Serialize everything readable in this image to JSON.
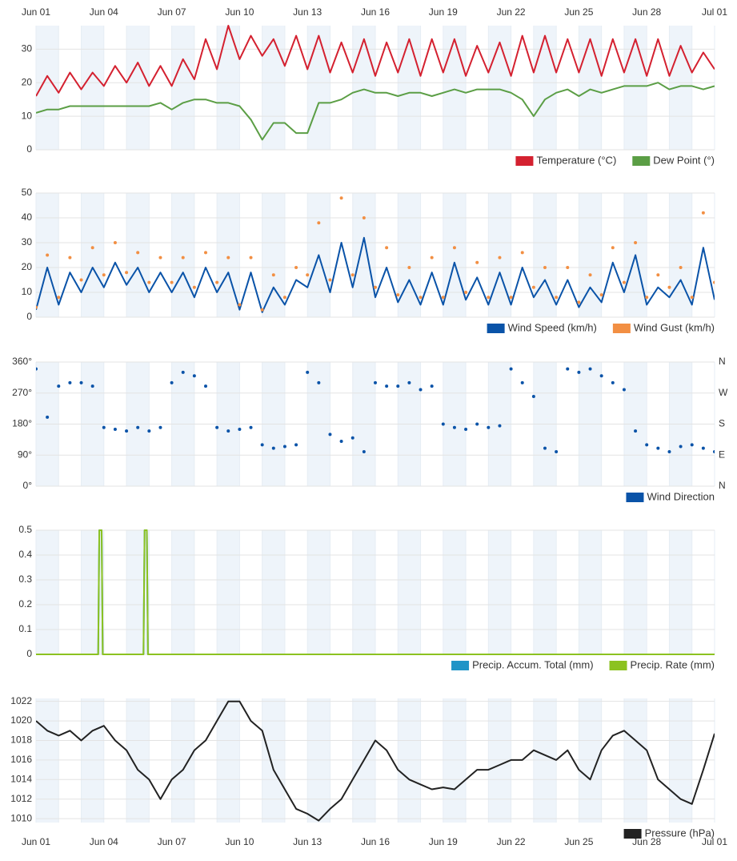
{
  "chart_data": [
    {
      "type": "line",
      "x": [
        0,
        0.5,
        1,
        1.5,
        2,
        2.5,
        3,
        3.5,
        4,
        4.5,
        5,
        5.5,
        6,
        6.5,
        7,
        7.5,
        8,
        8.5,
        9,
        9.5,
        10,
        10.5,
        11,
        11.5,
        12,
        12.5,
        13,
        13.5,
        14,
        14.5,
        15,
        15.5,
        16,
        16.5,
        17,
        17.5,
        18,
        18.5,
        19,
        19.5,
        20,
        20.5,
        21,
        21.5,
        22,
        22.5,
        23,
        23.5,
        24,
        24.5,
        25,
        25.5,
        26,
        26.5,
        27,
        27.5,
        28,
        28.5,
        29,
        29.5,
        30
      ],
      "xlim": [
        0,
        30
      ],
      "xticks": [
        {
          "value": 0,
          "label": "Jun 01"
        },
        {
          "value": 3,
          "label": "Jun 04"
        },
        {
          "value": 6,
          "label": "Jun 07"
        },
        {
          "value": 9,
          "label": "Jun 10"
        },
        {
          "value": 12,
          "label": "Jun 13"
        },
        {
          "value": 15,
          "label": "Jun 16"
        },
        {
          "value": 18,
          "label": "Jun 19"
        },
        {
          "value": 21,
          "label": "Jun 22"
        },
        {
          "value": 24,
          "label": "Jun 25"
        },
        {
          "value": 27,
          "label": "Jun 28"
        },
        {
          "value": 30,
          "label": "Jul 01"
        }
      ],
      "ylim": [
        0,
        37
      ],
      "yticks": [
        0,
        10,
        20,
        30
      ],
      "grid": true,
      "legend": "bottom-right",
      "series": [
        {
          "name": "Temperature (°C)",
          "color": "#d42130",
          "mark": "line",
          "values": [
            16,
            22,
            17,
            23,
            18,
            23,
            19,
            25,
            20,
            26,
            19,
            25,
            19,
            27,
            21,
            33,
            24,
            37,
            27,
            34,
            28,
            33,
            25,
            34,
            24,
            34,
            23,
            32,
            23,
            33,
            22,
            32,
            23,
            33,
            22,
            33,
            23,
            33,
            22,
            31,
            23,
            32,
            22,
            34,
            23,
            34,
            23,
            33,
            23,
            33,
            22,
            33,
            23,
            33,
            22,
            33,
            22,
            31,
            23,
            29,
            24
          ]
        },
        {
          "name": "Dew Point (°)",
          "color": "#5b9e45",
          "mark": "line",
          "values": [
            11,
            12,
            12,
            13,
            13,
            13,
            13,
            13,
            13,
            13,
            13,
            14,
            12,
            14,
            15,
            15,
            14,
            14,
            13,
            9,
            3,
            8,
            8,
            5,
            5,
            14,
            14,
            15,
            17,
            18,
            17,
            17,
            16,
            17,
            17,
            16,
            17,
            18,
            17,
            18,
            18,
            18,
            17,
            15,
            10,
            15,
            17,
            18,
            16,
            18,
            17,
            18,
            19,
            19,
            19,
            20,
            18,
            19,
            19,
            18,
            19
          ]
        }
      ]
    },
    {
      "type": "line",
      "x": [
        0,
        0.5,
        1,
        1.5,
        2,
        2.5,
        3,
        3.5,
        4,
        4.5,
        5,
        5.5,
        6,
        6.5,
        7,
        7.5,
        8,
        8.5,
        9,
        9.5,
        10,
        10.5,
        11,
        11.5,
        12,
        12.5,
        13,
        13.5,
        14,
        14.5,
        15,
        15.5,
        16,
        16.5,
        17,
        17.5,
        18,
        18.5,
        19,
        19.5,
        20,
        20.5,
        21,
        21.5,
        22,
        22.5,
        23,
        23.5,
        24,
        24.5,
        25,
        25.5,
        26,
        26.5,
        27,
        27.5,
        28,
        28.5,
        29,
        29.5,
        30
      ],
      "xlim": [
        0,
        30
      ],
      "ylim": [
        0,
        50
      ],
      "yticks": [
        0,
        10,
        20,
        30,
        40,
        50
      ],
      "grid": true,
      "legend": "bottom-right",
      "series": [
        {
          "name": "Wind Speed (km/h)",
          "color": "#0a53a8",
          "mark": "line",
          "values": [
            3,
            20,
            5,
            18,
            10,
            20,
            12,
            22,
            13,
            20,
            10,
            18,
            10,
            18,
            8,
            20,
            10,
            18,
            3,
            18,
            2,
            12,
            5,
            15,
            12,
            25,
            10,
            30,
            12,
            32,
            8,
            20,
            6,
            15,
            5,
            18,
            5,
            22,
            7,
            16,
            5,
            18,
            5,
            20,
            8,
            15,
            5,
            15,
            4,
            12,
            6,
            22,
            10,
            25,
            5,
            12,
            8,
            15,
            5,
            28,
            7
          ]
        },
        {
          "name": "Wind Gust (km/h)",
          "color": "#f28f43",
          "mark": "dot",
          "values": [
            4,
            25,
            8,
            24,
            15,
            28,
            17,
            30,
            18,
            26,
            14,
            24,
            14,
            24,
            12,
            26,
            14,
            24,
            5,
            24,
            3,
            17,
            8,
            20,
            17,
            38,
            15,
            48,
            17,
            40,
            12,
            28,
            9,
            20,
            8,
            24,
            8,
            28,
            10,
            22,
            8,
            24,
            8,
            26,
            12,
            20,
            8,
            20,
            6,
            17,
            9,
            28,
            14,
            30,
            8,
            17,
            12,
            20,
            8,
            42,
            14
          ]
        }
      ]
    },
    {
      "type": "scatter",
      "x": [
        0,
        0.5,
        1,
        1.5,
        2,
        2.5,
        3,
        3.5,
        4,
        4.5,
        5,
        5.5,
        6,
        6.5,
        7,
        7.5,
        8,
        8.5,
        9,
        9.5,
        10,
        10.5,
        11,
        11.5,
        12,
        12.5,
        13,
        13.5,
        14,
        14.5,
        15,
        15.5,
        16,
        16.5,
        17,
        17.5,
        18,
        18.5,
        19,
        19.5,
        20,
        20.5,
        21,
        21.5,
        22,
        22.5,
        23,
        23.5,
        24,
        24.5,
        25,
        25.5,
        26,
        26.5,
        27,
        27.5,
        28,
        28.5,
        29,
        29.5,
        30
      ],
      "xlim": [
        0,
        30
      ],
      "ylim": [
        0,
        360
      ],
      "yticks": [
        {
          "value": 0,
          "label": "0°"
        },
        {
          "value": 90,
          "label": "90°"
        },
        {
          "value": 180,
          "label": "180°"
        },
        {
          "value": 270,
          "label": "270°"
        },
        {
          "value": 360,
          "label": "360°"
        }
      ],
      "y2lim": [
        0,
        360
      ],
      "y2ticks": [
        {
          "value": 0,
          "label": "N"
        },
        {
          "value": 90,
          "label": "E"
        },
        {
          "value": 180,
          "label": "S"
        },
        {
          "value": 270,
          "label": "W"
        },
        {
          "value": 360,
          "label": "N"
        }
      ],
      "grid": true,
      "legend": "bottom-right",
      "series": [
        {
          "name": "Wind Direction",
          "color": "#0a53a8",
          "mark": "dot",
          "values": [
            340,
            200,
            290,
            300,
            300,
            290,
            170,
            165,
            160,
            170,
            160,
            170,
            300,
            330,
            320,
            290,
            170,
            160,
            165,
            170,
            120,
            110,
            115,
            120,
            330,
            300,
            150,
            130,
            140,
            100,
            300,
            290,
            290,
            300,
            280,
            290,
            180,
            170,
            165,
            180,
            170,
            175,
            340,
            300,
            260,
            110,
            100,
            340,
            330,
            340,
            320,
            300,
            280,
            160,
            120,
            110,
            100,
            115,
            120,
            110,
            100
          ]
        }
      ]
    },
    {
      "type": "line",
      "x": [
        0,
        2.75,
        2.8,
        2.9,
        2.95,
        4.75,
        4.8,
        4.9,
        4.95,
        30
      ],
      "xlim": [
        0,
        30
      ],
      "ylim": [
        0,
        0.5
      ],
      "yticks": [
        0,
        0.1,
        0.2,
        0.3,
        0.4,
        0.5
      ],
      "grid": true,
      "legend": "bottom-right",
      "series": [
        {
          "name": "Precip. Accum. Total (mm)",
          "color": "#1f94c7",
          "mark": "line",
          "values": [
            0,
            0,
            0.5,
            0.5,
            0,
            0,
            0.5,
            0.5,
            0,
            0
          ]
        },
        {
          "name": "Precip. Rate (mm)",
          "color": "#8cc220",
          "mark": "line",
          "values": [
            0,
            0,
            0.5,
            0.5,
            0,
            0,
            0.5,
            0.5,
            0,
            0
          ]
        }
      ]
    },
    {
      "type": "line",
      "x": [
        0,
        0.5,
        1,
        1.5,
        2,
        2.5,
        3,
        3.5,
        4,
        4.5,
        5,
        5.5,
        6,
        6.5,
        7,
        7.5,
        8,
        8.5,
        9,
        9.5,
        10,
        10.5,
        11,
        11.5,
        12,
        12.5,
        13,
        13.5,
        14,
        14.5,
        15,
        15.5,
        16,
        16.5,
        17,
        17.5,
        18,
        18.5,
        19,
        19.5,
        20,
        20.5,
        21,
        21.5,
        22,
        22.5,
        23,
        23.5,
        24,
        24.5,
        25,
        25.5,
        26,
        26.5,
        27,
        27.5,
        28,
        28.5,
        29,
        29.5,
        30
      ],
      "xlim": [
        0,
        30
      ],
      "xticks": [
        {
          "value": 0,
          "label": "Jun 01"
        },
        {
          "value": 3,
          "label": "Jun 04"
        },
        {
          "value": 6,
          "label": "Jun 07"
        },
        {
          "value": 9,
          "label": "Jun 10"
        },
        {
          "value": 12,
          "label": "Jun 13"
        },
        {
          "value": 15,
          "label": "Jun 16"
        },
        {
          "value": 18,
          "label": "Jun 19"
        },
        {
          "value": 21,
          "label": "Jun 22"
        },
        {
          "value": 24,
          "label": "Jun 25"
        },
        {
          "value": 27,
          "label": "Jun 28"
        },
        {
          "value": 30,
          "label": "Jul 01"
        }
      ],
      "ylim": [
        1009.6,
        1022.3
      ],
      "yticks": [
        1010,
        1012,
        1014,
        1016,
        1018,
        1020,
        1022
      ],
      "grid": true,
      "legend": "bottom-right",
      "series": [
        {
          "name": "Pressure (hPa)",
          "color": "#222222",
          "mark": "line",
          "values": [
            1020,
            1019,
            1018.5,
            1019,
            1018,
            1019,
            1019.5,
            1018,
            1017,
            1015,
            1014,
            1012,
            1014,
            1015,
            1017,
            1018,
            1020,
            1022,
            1022,
            1020,
            1019,
            1015,
            1013,
            1011,
            1010.5,
            1009.8,
            1011,
            1012,
            1014,
            1016,
            1018,
            1017,
            1015,
            1014,
            1013.5,
            1013,
            1013.2,
            1013,
            1014,
            1015,
            1015,
            1015.5,
            1016,
            1016,
            1017,
            1016.5,
            1016,
            1017,
            1015,
            1014,
            1017,
            1018.5,
            1019,
            1018,
            1017,
            1014,
            1013,
            1012,
            1011.5,
            1015,
            1018.7
          ]
        }
      ]
    }
  ]
}
